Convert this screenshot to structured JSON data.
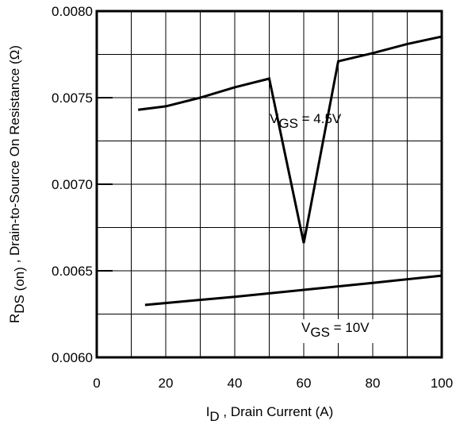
{
  "chart_data": {
    "type": "line",
    "x_label": {
      "main": "I",
      "sub": "D",
      "rest": " , Drain Current (A)"
    },
    "y_label": {
      "main": "R",
      "sub": "DS (on)",
      "rest": " , Drain-to-Source On Resistance (Ω)"
    },
    "xlim": [
      0,
      100
    ],
    "ylim": [
      0.006,
      0.008
    ],
    "xticks": [
      0,
      20,
      40,
      60,
      80,
      100
    ],
    "yticks": [
      {
        "value": 0.006,
        "label": "0.0060"
      },
      {
        "value": 0.0065,
        "label": "0.0065"
      },
      {
        "value": 0.007,
        "label": "0.0070"
      },
      {
        "value": 0.0075,
        "label": "0.0075"
      },
      {
        "value": 0.008,
        "label": "0.0080"
      }
    ],
    "xgrid": [
      10,
      20,
      30,
      40,
      50,
      60,
      70,
      80,
      90
    ],
    "ygrid": [
      0.00625,
      0.0065,
      0.00675,
      0.007,
      0.00725,
      0.0075,
      0.00775
    ],
    "series": [
      {
        "name": {
          "main": "V",
          "sub": "GS",
          "rest": " = 4.5V"
        },
        "color": "#000000",
        "x": [
          12,
          20,
          30,
          40,
          50,
          60,
          70,
          80,
          90,
          100
        ],
        "values": [
          0.00743,
          0.00745,
          0.0075,
          0.00756,
          0.00761,
          0.00666,
          0.00771,
          0.007757,
          0.00781,
          0.007853
        ]
      },
      {
        "name": {
          "main": "V",
          "sub": "GS",
          "rest": " = 10V"
        },
        "color": "#000000",
        "x": [
          14,
          40,
          60,
          80,
          100
        ],
        "values": [
          0.006303,
          0.00635,
          0.00639,
          0.00643,
          0.006472
        ]
      }
    ]
  }
}
